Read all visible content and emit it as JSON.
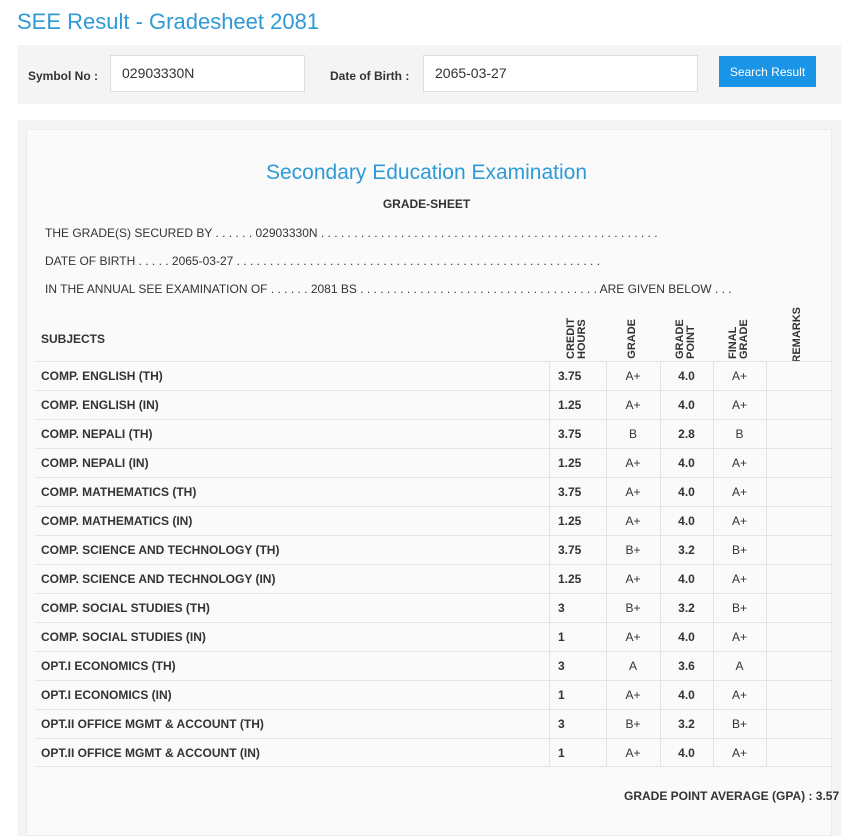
{
  "page": {
    "title": "SEE Result - Gradesheet 2081"
  },
  "search": {
    "symbol_label": "Symbol No :",
    "symbol_value": "02903330N",
    "dob_label": "Date of Birth :",
    "dob_value": "2065-03-27",
    "button_label": "Search Result"
  },
  "sheet": {
    "exam_title": "Secondary Education Examination",
    "gradesheet_title": "GRADE-SHEET",
    "line1": "THE GRADE(S) SECURED BY . . . . . . 02903330N . . . . . . . . . . . . . . . . . . . . . . . . . . . . . . . . . . . . . . . . . . . . . . . . . . .",
    "line2": "DATE OF BIRTH . . . . . 2065-03-27 . . . . . . . . . . . . . . . . . . . . . . . . . . . . . . . . . . . . . . . . . . . . . . . . . . . . . . .",
    "line3": "IN THE ANNUAL SEE EXAMINATION OF . . . . . . 2081 BS . . . . . . . . . . . . . . . . . . . . . . . . . . . . . . . . . . . . ARE GIVEN BELOW . . .",
    "headers": {
      "subjects": "SUBJECTS",
      "credit_hours": "CREDIT HOURS",
      "grade": "GRADE",
      "grade_point": "GRADE POINT",
      "final_grade": "FINAL GRADE",
      "remarks": "REMARKS"
    },
    "rows": [
      {
        "subject": "COMP. ENGLISH (TH)",
        "credit": "3.75",
        "grade": "A+",
        "point": "4.0",
        "final": "A+"
      },
      {
        "subject": "COMP. ENGLISH (IN)",
        "credit": "1.25",
        "grade": "A+",
        "point": "4.0",
        "final": "A+"
      },
      {
        "subject": "COMP. NEPALI (TH)",
        "credit": "3.75",
        "grade": "B",
        "point": "2.8",
        "final": "B"
      },
      {
        "subject": "COMP. NEPALI (IN)",
        "credit": "1.25",
        "grade": "A+",
        "point": "4.0",
        "final": "A+"
      },
      {
        "subject": "COMP. MATHEMATICS (TH)",
        "credit": "3.75",
        "grade": "A+",
        "point": "4.0",
        "final": "A+"
      },
      {
        "subject": "COMP. MATHEMATICS (IN)",
        "credit": "1.25",
        "grade": "A+",
        "point": "4.0",
        "final": "A+"
      },
      {
        "subject": "COMP. SCIENCE AND TECHNOLOGY (TH)",
        "credit": "3.75",
        "grade": "B+",
        "point": "3.2",
        "final": "B+"
      },
      {
        "subject": "COMP. SCIENCE AND TECHNOLOGY (IN)",
        "credit": "1.25",
        "grade": "A+",
        "point": "4.0",
        "final": "A+"
      },
      {
        "subject": "COMP. SOCIAL STUDIES (TH)",
        "credit": "3",
        "grade": "B+",
        "point": "3.2",
        "final": "B+"
      },
      {
        "subject": "COMP. SOCIAL STUDIES (IN)",
        "credit": "1",
        "grade": "A+",
        "point": "4.0",
        "final": "A+"
      },
      {
        "subject": "OPT.I ECONOMICS (TH)",
        "credit": "3",
        "grade": "A",
        "point": "3.6",
        "final": "A"
      },
      {
        "subject": "OPT.I ECONOMICS (IN)",
        "credit": "1",
        "grade": "A+",
        "point": "4.0",
        "final": "A+"
      },
      {
        "subject": "OPT.II OFFICE MGMT & ACCOUNT (TH)",
        "credit": "3",
        "grade": "B+",
        "point": "3.2",
        "final": "B+"
      },
      {
        "subject": "OPT.II OFFICE MGMT & ACCOUNT (IN)",
        "credit": "1",
        "grade": "A+",
        "point": "4.0",
        "final": "A+"
      }
    ],
    "gpa_text": "GRADE POINT AVERAGE (GPA) : 3.57"
  },
  "colors": {
    "accent": "#2e9ad6",
    "button": "#1a94e6"
  }
}
